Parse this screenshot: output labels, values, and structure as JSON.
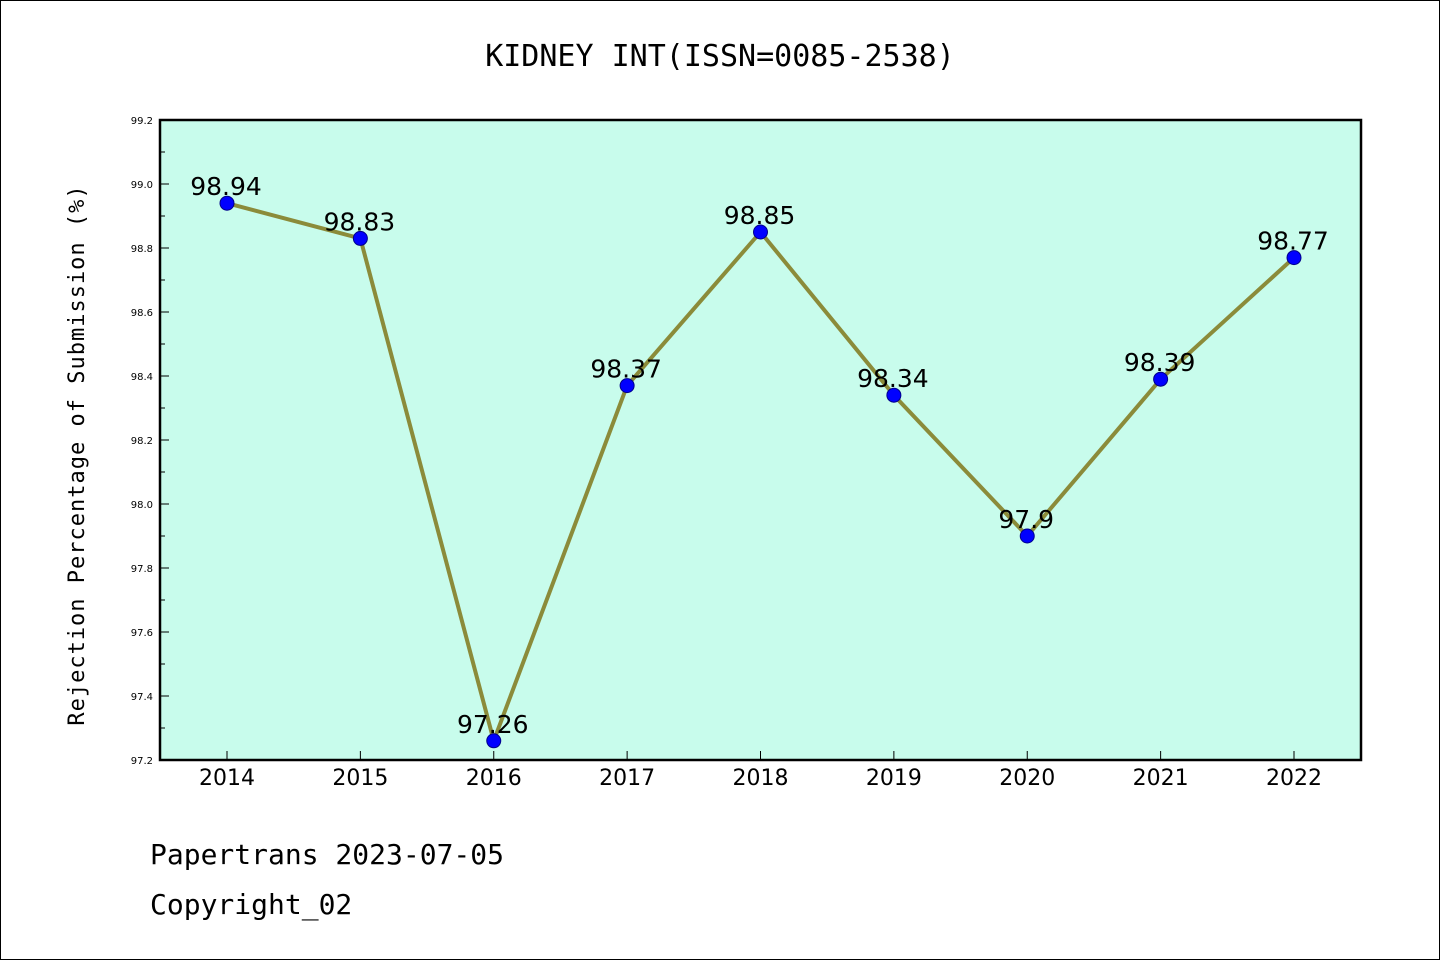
{
  "chart_data": {
    "type": "line",
    "title": "KIDNEY INT(ISSN=0085-2538)",
    "xlabel": "",
    "ylabel": "Rejection Percentage of Submission (%)",
    "categories": [
      "2014",
      "2015",
      "2016",
      "2017",
      "2018",
      "2019",
      "2020",
      "2021",
      "2022"
    ],
    "values": [
      98.94,
      98.83,
      97.26,
      98.37,
      98.85,
      98.34,
      97.9,
      98.39,
      98.77
    ],
    "data_labels": [
      "98.94",
      "98.83",
      "97.26",
      "98.37",
      "98.85",
      "98.34",
      "97.9",
      "98.39",
      "98.77"
    ],
    "ylim": [
      97.2,
      99.2
    ],
    "yticks": [
      "97.2",
      "97.4",
      "97.6",
      "97.8",
      "98.0",
      "98.2",
      "98.4",
      "98.6",
      "98.8",
      "99.0",
      "99.2"
    ],
    "grid": false,
    "line_color": "#8b8b3a",
    "marker_color": "#0000ff",
    "plot_background": "#c8fcec"
  },
  "footer": {
    "source": "Papertrans 2023-07-05",
    "copyright": "Copyright_02"
  }
}
